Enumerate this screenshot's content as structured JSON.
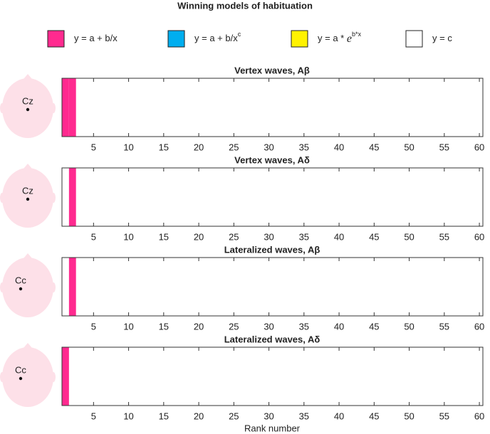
{
  "figure": {
    "title": "Winning models of habituation",
    "x_label": "Rank number",
    "legend": [
      {
        "text": "y = a + b/x",
        "color": "#ff2a8f"
      },
      {
        "text": "y = a + b/x",
        "sup": "c",
        "color": "#00aeef"
      },
      {
        "text": "y = a * ",
        "base": "e",
        "sup": "b*x",
        "color": "#fff200"
      },
      {
        "text": "y = c",
        "color": "#ffffff"
      }
    ]
  },
  "chart_data": [
    {
      "type": "bar",
      "title": "Vertex waves, Aβ",
      "electrode": "Cz",
      "xlim": [
        0.5,
        60.5
      ],
      "xticks": [
        5,
        10,
        15,
        20,
        25,
        30,
        35,
        40,
        45,
        50,
        55,
        60
      ],
      "series": [
        {
          "color": "#ff2a8f",
          "x": [
            1,
            2
          ]
        }
      ]
    },
    {
      "type": "bar",
      "title": "Vertex waves, Aδ",
      "electrode": "Cz",
      "xlim": [
        0.5,
        60.5
      ],
      "xticks": [
        5,
        10,
        15,
        20,
        25,
        30,
        35,
        40,
        45,
        50,
        55,
        60
      ],
      "series": [
        {
          "color": "#ff2a8f",
          "x": [
            2
          ]
        }
      ]
    },
    {
      "type": "bar",
      "title": "Lateralized waves, Aβ",
      "electrode": "Cc",
      "xlim": [
        0.5,
        60.5
      ],
      "xticks": [
        5,
        10,
        15,
        20,
        25,
        30,
        35,
        40,
        45,
        50,
        55,
        60
      ],
      "series": [
        {
          "color": "#ff2a8f",
          "x": [
            2
          ]
        }
      ]
    },
    {
      "type": "bar",
      "title": "Lateralized waves, Aδ",
      "electrode": "Cc",
      "xlim": [
        0.5,
        60.5
      ],
      "xticks": [
        5,
        10,
        15,
        20,
        25,
        30,
        35,
        40,
        45,
        50,
        55,
        60
      ],
      "series": [
        {
          "color": "#ff2a8f",
          "x": [
            1
          ]
        }
      ]
    }
  ]
}
